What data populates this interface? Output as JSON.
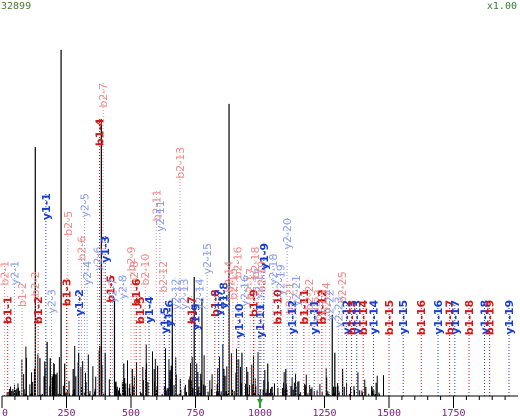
{
  "header": {
    "max_intensity": "32899",
    "zoom": "x1.00"
  },
  "colors": {
    "b_strong": "#d01818",
    "b_weak": "#f08a8a",
    "y_strong": "#1a3fcf",
    "y_weak": "#8a9ee8",
    "axis": "#000000",
    "tick_text": "#7a1e7a",
    "marker": "#2e9d2e",
    "peak": "#000000"
  },
  "chart_data": {
    "type": "bar",
    "x_range": [
      0,
      2000
    ],
    "x_ticks": [
      0,
      250,
      500,
      750,
      1000,
      1250,
      1500,
      1750
    ],
    "y_range": [
      0,
      32899
    ],
    "precursor_marker_mz": 1000,
    "major_peaks": [
      {
        "mz": 129,
        "i": 23000
      },
      {
        "mz": 147,
        "i": 3500
      },
      {
        "mz": 166,
        "i": 3200
      },
      {
        "mz": 175,
        "i": 5000
      },
      {
        "mz": 187,
        "i": 3500
      },
      {
        "mz": 229,
        "i": 32000
      },
      {
        "mz": 243,
        "i": 3000
      },
      {
        "mz": 276,
        "i": 2500
      },
      {
        "mz": 297,
        "i": 4000
      },
      {
        "mz": 377,
        "i": 4200
      },
      {
        "mz": 385,
        "i": 25000
      },
      {
        "mz": 400,
        "i": 4000
      },
      {
        "mz": 436,
        "i": 9000
      },
      {
        "mz": 472,
        "i": 3000
      },
      {
        "mz": 505,
        "i": 2500
      },
      {
        "mz": 560,
        "i": 3000
      },
      {
        "mz": 603,
        "i": 2800
      },
      {
        "mz": 660,
        "i": 9000
      },
      {
        "mz": 745,
        "i": 11000
      },
      {
        "mz": 775,
        "i": 9000
      },
      {
        "mz": 860,
        "i": 2500
      },
      {
        "mz": 880,
        "i": 27000
      },
      {
        "mz": 930,
        "i": 4000
      },
      {
        "mz": 1030,
        "i": 3000
      },
      {
        "mz": 1100,
        "i": 2500
      },
      {
        "mz": 1280,
        "i": 7500
      },
      {
        "mz": 1290,
        "i": 4000
      },
      {
        "mz": 1320,
        "i": 2500
      }
    ],
    "ion_labels": [
      {
        "text": "b2-1",
        "mz": 10,
        "style": "b_weak",
        "top": 0.38
      },
      {
        "text": "b1-1",
        "mz": 22,
        "style": "b_strong",
        "top": 0.28
      },
      {
        "text": "y2-1",
        "mz": 48,
        "style": "y_weak",
        "top": 0.38
      },
      {
        "text": "b1-2",
        "mz": 78,
        "style": "b_weak",
        "top": 0.32
      },
      {
        "text": "b2-2",
        "mz": 128,
        "style": "b_weak",
        "top": 0.35
      },
      {
        "text": "b1-2",
        "mz": 140,
        "style": "b_strong",
        "top": 0.28
      },
      {
        "text": "y1-1",
        "mz": 170,
        "style": "y_strong",
        "top": 0.57
      },
      {
        "text": "y2-3",
        "mz": 192,
        "style": "y_weak",
        "top": 0.3
      },
      {
        "text": "b1-3",
        "mz": 250,
        "style": "b_strong",
        "top": 0.33
      },
      {
        "text": "b2-5",
        "mz": 255,
        "style": "b_weak",
        "top": 0.52
      },
      {
        "text": "y1-2",
        "mz": 298,
        "style": "y_strong",
        "top": 0.3
      },
      {
        "text": "b2-6",
        "mz": 308,
        "style": "b_weak",
        "top": 0.45
      },
      {
        "text": "y2-4",
        "mz": 330,
        "style": "y_weak",
        "top": 0.38
      },
      {
        "text": "y2-5",
        "mz": 320,
        "style": "y_weak",
        "top": 0.57
      },
      {
        "text": "y2-6",
        "mz": 370,
        "style": "y_weak",
        "top": 0.42
      },
      {
        "text": "b1-4",
        "mz": 378,
        "style": "b_strong",
        "top": 0.78
      },
      {
        "text": "b2-7",
        "mz": 392,
        "style": "b_weak",
        "top": 0.88
      },
      {
        "text": "y1-3",
        "mz": 400,
        "style": "y_strong",
        "top": 0.45
      },
      {
        "text": "b1-5",
        "mz": 420,
        "style": "b_strong",
        "top": 0.34
      },
      {
        "text": "y2-7",
        "mz": 428,
        "style": "y_weak",
        "top": 0.33
      },
      {
        "text": "y2-8",
        "mz": 468,
        "style": "y_weak",
        "top": 0.34
      },
      {
        "text": "b2-9",
        "mz": 500,
        "style": "b_weak",
        "top": 0.42
      },
      {
        "text": "b2-8",
        "mz": 512,
        "style": "b_weak",
        "top": 0.38
      },
      {
        "text": "b1-6",
        "mz": 520,
        "style": "b_strong",
        "top": 0.33
      },
      {
        "text": "b1-5",
        "mz": 535,
        "style": "b_strong",
        "top": 0.28
      },
      {
        "text": "b2-10",
        "mz": 555,
        "style": "b_weak",
        "top": 0.4
      },
      {
        "text": "y1-4",
        "mz": 570,
        "style": "y_strong",
        "top": 0.28
      },
      {
        "text": "b2-11",
        "mz": 598,
        "style": "b_weak",
        "top": 0.58
      },
      {
        "text": "y2-11",
        "mz": 612,
        "style": "y_weak",
        "top": 0.55
      },
      {
        "text": "b2-12",
        "mz": 625,
        "style": "b_weak",
        "top": 0.38
      },
      {
        "text": "y1-5",
        "mz": 630,
        "style": "y_strong",
        "top": 0.25
      },
      {
        "text": "y1-6",
        "mz": 648,
        "style": "y_strong",
        "top": 0.27
      },
      {
        "text": "y2-12",
        "mz": 672,
        "style": "y_weak",
        "top": 0.33
      },
      {
        "text": "b2-13",
        "mz": 690,
        "style": "b_weak",
        "top": 0.7
      },
      {
        "text": "y2-13",
        "mz": 705,
        "style": "y_weak",
        "top": 0.33
      },
      {
        "text": "b1-7",
        "mz": 735,
        "style": "b_strong",
        "top": 0.28
      },
      {
        "text": "y1-9",
        "mz": 750,
        "style": "y_strong",
        "top": 0.26
      },
      {
        "text": "y2-14",
        "mz": 765,
        "style": "y_weak",
        "top": 0.33
      },
      {
        "text": "y2-15",
        "mz": 795,
        "style": "y_weak",
        "top": 0.43
      },
      {
        "text": "b1-8",
        "mz": 825,
        "style": "b_strong",
        "top": 0.3
      },
      {
        "text": "y1-7",
        "mz": 840,
        "style": "y_strong",
        "top": 0.3
      },
      {
        "text": "y1-8",
        "mz": 858,
        "style": "y_strong",
        "top": 0.32
      },
      {
        "text": "b2-14",
        "mz": 878,
        "style": "b_weak",
        "top": 0.38
      },
      {
        "text": "b2-15",
        "mz": 895,
        "style": "b_weak",
        "top": 0.36
      },
      {
        "text": "b2-16",
        "mz": 912,
        "style": "b_weak",
        "top": 0.42
      },
      {
        "text": "y1-10",
        "mz": 918,
        "style": "y_strong",
        "top": 0.26
      },
      {
        "text": "y2-16",
        "mz": 940,
        "style": "y_weak",
        "top": 0.34
      },
      {
        "text": "b2-17",
        "mz": 962,
        "style": "b_weak",
        "top": 0.36
      },
      {
        "text": "b1-9",
        "mz": 975,
        "style": "b_strong",
        "top": 0.3
      },
      {
        "text": "b2-18",
        "mz": 980,
        "style": "b_weak",
        "top": 0.42
      },
      {
        "text": "y2-17",
        "mz": 995,
        "style": "y_weak",
        "top": 0.36
      },
      {
        "text": "y1-11",
        "mz": 1000,
        "style": "y_strong",
        "top": 0.26
      },
      {
        "text": "b2-19",
        "mz": 1005,
        "style": "b_weak",
        "top": 0.38
      },
      {
        "text": "y1-9",
        "mz": 1015,
        "style": "y_strong",
        "top": 0.43
      },
      {
        "text": "y2-18",
        "mz": 1050,
        "style": "y_weak",
        "top": 0.4
      },
      {
        "text": "b1-10",
        "mz": 1068,
        "style": "b_strong",
        "top": 0.3
      },
      {
        "text": "y2-19",
        "mz": 1080,
        "style": "y_weak",
        "top": 0.37
      },
      {
        "text": "y2-20",
        "mz": 1105,
        "style": "y_weak",
        "top": 0.5
      },
      {
        "text": "b2-21",
        "mz": 1115,
        "style": "b_weak",
        "top": 0.32
      },
      {
        "text": "y1-12",
        "mz": 1125,
        "style": "y_strong",
        "top": 0.27
      },
      {
        "text": "y2-21",
        "mz": 1140,
        "style": "y_weak",
        "top": 0.34
      },
      {
        "text": "b1-11",
        "mz": 1170,
        "style": "b_strong",
        "top": 0.3
      },
      {
        "text": "b2-22",
        "mz": 1190,
        "style": "b_weak",
        "top": 0.33
      },
      {
        "text": "y1-11",
        "mz": 1210,
        "style": "y_strong",
        "top": 0.27
      },
      {
        "text": "b2-23",
        "mz": 1225,
        "style": "b_weak",
        "top": 0.3
      },
      {
        "text": "b1-12",
        "mz": 1240,
        "style": "b_strong",
        "top": 0.3
      },
      {
        "text": "b2-24",
        "mz": 1255,
        "style": "b_weak",
        "top": 0.32
      },
      {
        "text": "y2-22",
        "mz": 1270,
        "style": "y_weak",
        "top": 0.3
      },
      {
        "text": "y2-23",
        "mz": 1305,
        "style": "y_weak",
        "top": 0.28
      },
      {
        "text": "b2-25",
        "mz": 1318,
        "style": "b_weak",
        "top": 0.35
      },
      {
        "text": "y1-12",
        "mz": 1335,
        "style": "y_strong",
        "top": 0.27
      },
      {
        "text": "b1-13",
        "mz": 1355,
        "style": "b_strong",
        "top": 0.27
      },
      {
        "text": "y1-13",
        "mz": 1375,
        "style": "y_strong",
        "top": 0.27
      },
      {
        "text": "b1-14",
        "mz": 1400,
        "style": "b_strong",
        "top": 0.27
      },
      {
        "text": "y1-14",
        "mz": 1440,
        "style": "y_strong",
        "top": 0.27
      },
      {
        "text": "b1-15",
        "mz": 1500,
        "style": "b_strong",
        "top": 0.27
      },
      {
        "text": "y1-15",
        "mz": 1555,
        "style": "y_strong",
        "top": 0.27
      },
      {
        "text": "b1-16",
        "mz": 1625,
        "style": "b_strong",
        "top": 0.27
      },
      {
        "text": "y1-16",
        "mz": 1690,
        "style": "y_strong",
        "top": 0.27
      },
      {
        "text": "b1-17",
        "mz": 1735,
        "style": "b_strong",
        "top": 0.27
      },
      {
        "text": "y1-17",
        "mz": 1755,
        "style": "y_strong",
        "top": 0.27
      },
      {
        "text": "b1-18",
        "mz": 1810,
        "style": "b_strong",
        "top": 0.27
      },
      {
        "text": "y1-18",
        "mz": 1870,
        "style": "y_strong",
        "top": 0.27
      },
      {
        "text": "b1-19",
        "mz": 1890,
        "style": "b_strong",
        "top": 0.27
      },
      {
        "text": "y1-19",
        "mz": 1965,
        "style": "y_strong",
        "top": 0.27
      }
    ]
  }
}
